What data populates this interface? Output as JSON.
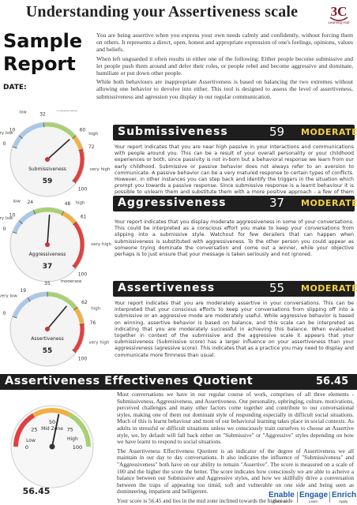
{
  "header": {
    "title": "Understanding your Assertiveness scale",
    "logo_text": "3C Learning Hub",
    "logo_caption": "Learning Hub"
  },
  "title_block": {
    "sample_line1": "Sample",
    "sample_line2": "Report",
    "date_label": "DATE:"
  },
  "intro": {
    "paragraphs": [
      "You are being assertive when you express your own needs calmly and confidently, without forcing them on others. It represents a direct, open, honest and appropriate expression of one's feelings, opinions, values and beliefs.",
      "When left unguarded it often results in either one of the following: Either people become submissive and let people push them around and defer their roles, or people rebel and become aggressive and dominate, humiliate or put down other people.",
      "While both behaviours are inappropriate Assertiveness is based on balancing the two extremes without allowing one behavior to devolve into either. This tool is designed to assess the level of assertiveness, submissiveness and agression you display in our regular communication."
    ]
  },
  "sections": [
    {
      "name": "Submissiveness",
      "score": "59",
      "level": "MODERATE",
      "text": "Your report indicates that you are near high passive in your interactions and communications with people around you. This can be a result of your overall personality or your childhood experiences or both, since passivity is not in-born but a behavioral response we learn from our early childhood. Submissive or passive behavior does not always refer to an aversion to communicate. A passive behavior can be a very matured response to certain types of conflicts. However, in other instances you can step back and identify the triggers in the situation which prompt you towards a passive response. Since submissive response is a learnt behaviour it is possible to unlearn them and substitute them with a more positive approach - a few of them are described overleaf.",
      "gauge": {
        "value": 59,
        "center_label": "Submissiveness",
        "ticks": [
          {
            "label": "0",
            "value": 0
          },
          {
            "label": "10",
            "value": 10
          },
          {
            "label": "32",
            "value": 32
          },
          {
            "label": "60",
            "value": 60
          },
          {
            "label": "72",
            "value": 72
          },
          {
            "label": "100",
            "value": 100
          }
        ],
        "zones": [
          "moderate",
          "high",
          "very high",
          "low",
          "very low"
        ]
      }
    },
    {
      "name": "Aggressiveness",
      "score": "37",
      "level": "MODERATE",
      "text": "Your report indicates that you display moderate aggressiveness in some of your conversations. This could be interpreted as a conscious effort you make to keep your conversations from slipping into a submissive style. Watchout for few derailers that can happen when submissiveness is substituted with aggressiveness. To the other person you could appear as someone trying dominate the conversation and come out a winner, while your objective perhaps is to just ensure that your message is taken seriously and not ignored.",
      "gauge": {
        "value": 37,
        "center_label": "Aggressiveness",
        "ticks": [
          {
            "label": "0",
            "value": 0
          },
          {
            "label": "10",
            "value": 10
          },
          {
            "label": "24",
            "value": 24
          },
          {
            "label": "48",
            "value": 48
          },
          {
            "label": "61",
            "value": 61
          },
          {
            "label": "100",
            "value": 100
          }
        ],
        "zones": [
          "moderate",
          "high",
          "very high",
          "low",
          "very low"
        ]
      }
    },
    {
      "name": "Assertiveness",
      "score": "55",
      "level": "MODERATE",
      "text": "Your report indicates that you are moderately assertive in your conversations. This can be interpreted that your conscious efforts to keep your conversations from slipping off into a submissive or an aggressive mode are moderately useful. While aggressive behavior is based on winning, assertive behavior is based on balance, and this scale can be interpreted as indicating that you are moderately successful in achieving this balance. When evaluated together in context of the submissive and the aggressive scale it appears that your submissiveness (Submissive score) has a larger influence on your assertiveness than your aggressiveness (agressive score). This indicates that as a practice you may need to display and communicate more firmness than usual.",
      "gauge": {
        "value": 55,
        "center_label": "Assertiveness",
        "ticks": [
          {
            "label": "0",
            "value": 0
          },
          {
            "label": "19",
            "value": 19
          },
          {
            "label": "35",
            "value": 35
          },
          {
            "label": "62",
            "value": 62
          },
          {
            "label": "76",
            "value": 76
          },
          {
            "label": "100",
            "value": 100
          }
        ],
        "zones": [
          "moderate",
          "high",
          "very high",
          "low",
          "very low"
        ]
      }
    }
  ],
  "eq": {
    "title": "Assertiveness Effectivenes Quotient",
    "score": "56.45",
    "gauge": {
      "value": 56.45,
      "readout": "56.45",
      "ticks": [
        {
          "label": "0",
          "value": 0
        },
        {
          "label": "25",
          "value": 25
        },
        {
          "label": "50",
          "value": 50
        },
        {
          "label": "75",
          "value": 75
        },
        {
          "label": "100",
          "value": 100
        }
      ],
      "zones": [
        "Low",
        "Mid Zone",
        "High"
      ]
    },
    "paragraphs": [
      "Most conversations we have in our regular course of work, comprises of all three elements - Submissiveness, Aggressiveness, and Assertiveness. Our personality, upbringing, culture, motivations, perceived challenges and many other factors come together and contribute to our conversational styles, making one of them our dominant style of responding especially in difficult social situations. Much of this is learnt behaviour and most of our behavioral learning takes place in social contexts. As adults in stressful or difficult situations unless we consciously train ourselves to choose an Assertive style, we, by default will fall back either on \"Submissive\" or \"Aggressive\" styles depending on how we have learnt to respond to social situations.",
      "The Assertiveness Effectiveness Quotient is an indicator of the degree of Assertiveness we all maintain in our day to day conversations. It also indicates the influence of \"Submissiveness\" and \"Aggressiveness\" both have on our ability to remain \"Assertive\". The score is measured on a scale of 100 and the higher the score the better. The score indicates how consciously we are able to acheive a balance between our Submissive and Aggressive styles, and how we skillfully drive a conversation between the traps of appearing too timid, soft and vulnerable on one side and being seen as domineering, impatient and belligerent.",
      "Your score is 56.45 and lies in the mid zone inclined towards the higher side"
    ]
  },
  "footer": {
    "enable": "Enable",
    "engage": "Engage",
    "enrich": "Enrich",
    "discover": "Discover",
    "learn": "Learn",
    "apply": "Apply"
  },
  "colors": {
    "bar_background": "#1e1e1e",
    "level_text": "#f5d048",
    "footer_blue": "#1e5aa8",
    "gauge_band_low": "#a8c8e8",
    "gauge_band_moderate": "#a8d070",
    "gauge_band_high": "#f0b040",
    "gauge_band_very_high": "#e04040"
  }
}
